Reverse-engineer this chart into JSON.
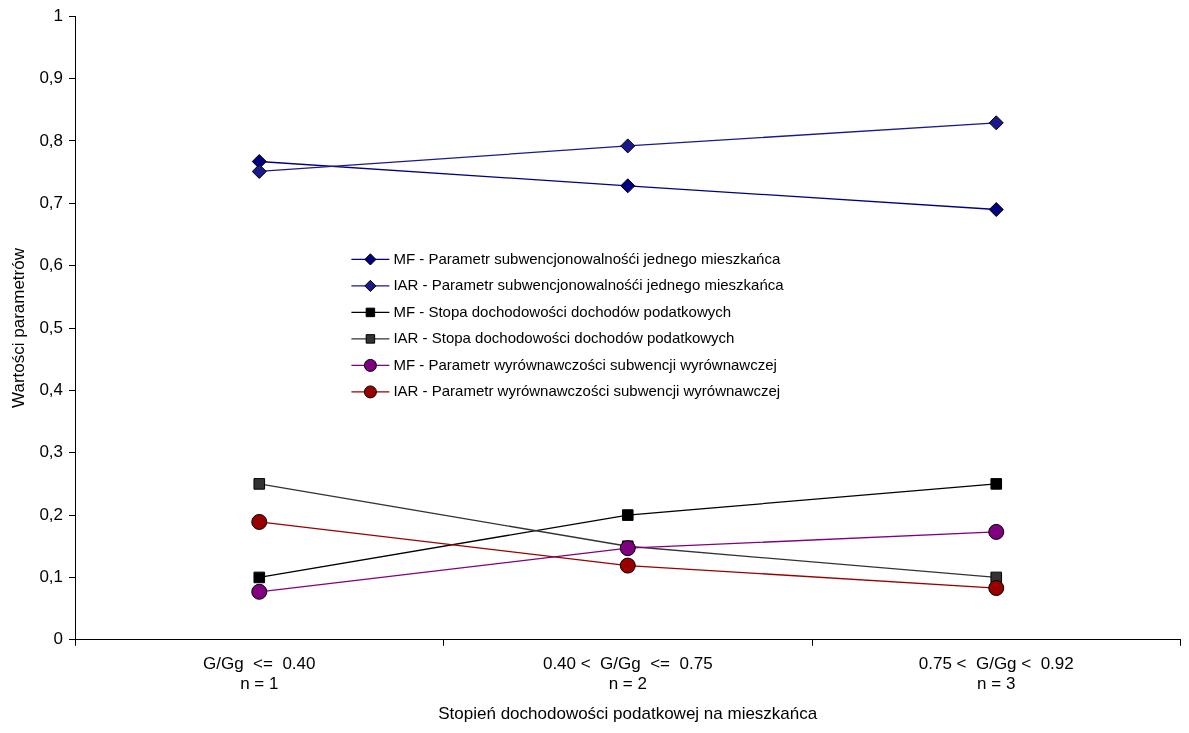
{
  "chart_data": {
    "type": "line",
    "xlabel": "Stopień dochodowości podatkowej na mieszkańca",
    "ylabel": "Wartości parametrów",
    "categories": [
      "G/Gg  <=  0.40\nn = 1",
      "0.40 <  G/Gg  <=  0.75\nn = 2",
      "0.75 <  G/Gg <  0.92\nn = 3"
    ],
    "series": [
      {
        "name": "MF - Parametr subwencjonowalnośći jednego mieszkańca",
        "color": "#000080",
        "marker": "diamond",
        "values": [
          0.767,
          0.728,
          0.69
        ]
      },
      {
        "name": "IAR - Parametr subwencjonowalnośći jednego mieszkańca",
        "color": "#1a1a8c",
        "marker": "diamond",
        "values": [
          0.751,
          0.792,
          0.829
        ]
      },
      {
        "name": "MF - Stopa dochodowości dochodów podatkowych",
        "color": "#000000",
        "marker": "square",
        "values": [
          0.1,
          0.2,
          0.25
        ]
      },
      {
        "name": "IAR - Stopa dochodowości dochodów podatkowych",
        "color": "#333333",
        "marker": "square",
        "values": [
          0.25,
          0.15,
          0.1
        ]
      },
      {
        "name": "MF - Parametr wyrównawczości subwencji wyrównawczej",
        "color": "#800080",
        "marker": "circle",
        "values": [
          0.077,
          0.147,
          0.173
        ]
      },
      {
        "name": "IAR - Parametr wyrównawczości subwencji wyrównawczej",
        "color": "#990000",
        "marker": "circle",
        "values": [
          0.189,
          0.119,
          0.083
        ]
      }
    ],
    "ylim": [
      0,
      1
    ],
    "yticks": [
      0,
      {
        "value": 0.1,
        "label": "0,1"
      },
      {
        "value": 0.2,
        "label": "0,2"
      },
      {
        "value": 0.3,
        "label": "0,3"
      },
      {
        "value": 0.4,
        "label": "0,4"
      },
      {
        "value": 0.5,
        "label": "0,5"
      },
      {
        "value": 0.6,
        "label": "0,6"
      },
      {
        "value": 0.7,
        "label": "0,7"
      },
      {
        "value": 0.8,
        "label": "0,8"
      },
      {
        "value": 0.9,
        "label": "0,9"
      },
      1
    ],
    "grid": false,
    "legend": "center"
  }
}
